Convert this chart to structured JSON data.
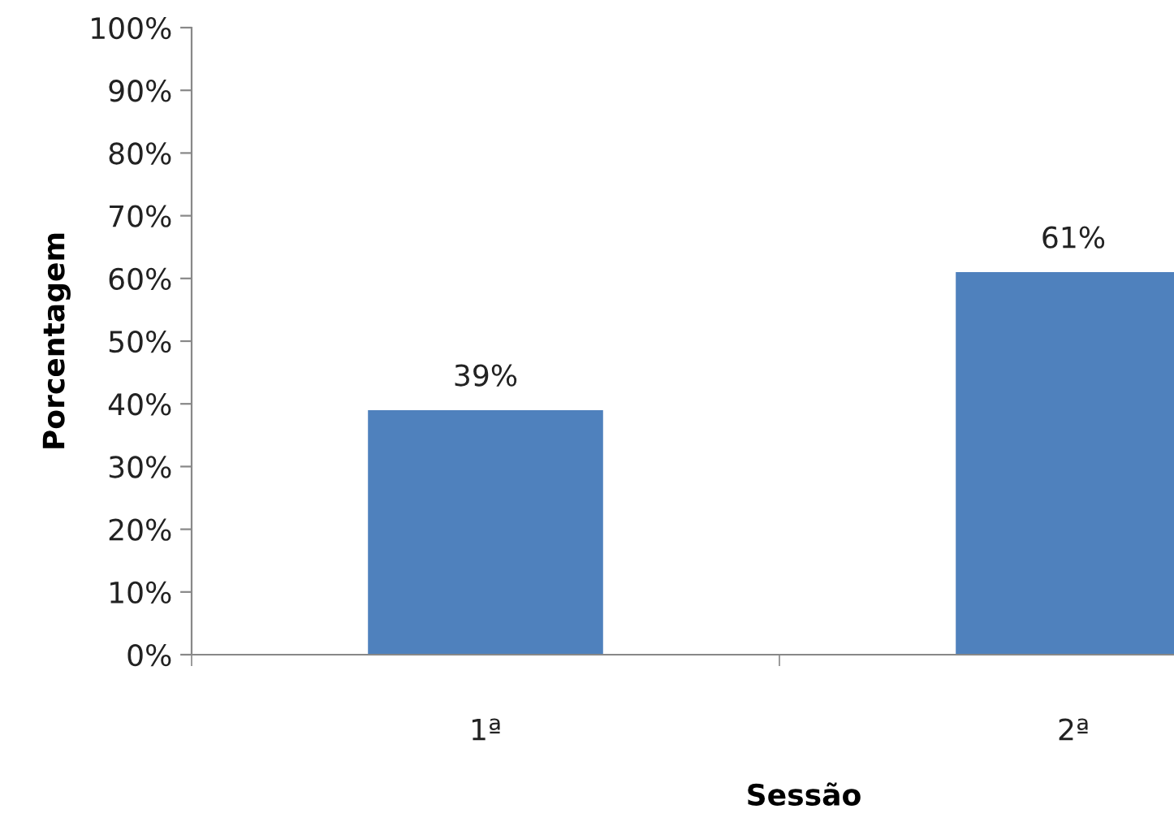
{
  "chart_data": {
    "type": "bar",
    "xlabel": "Sessão",
    "ylabel": "Porcentagem",
    "categories": [
      "1ª",
      "2ª"
    ],
    "values": [
      39,
      61
    ],
    "color": "#4f81bd",
    "value_labels": [
      "39%",
      "61%"
    ],
    "ylim": [
      0,
      100
    ],
    "yticks": [
      {
        "value": 0,
        "label": "0%"
      },
      {
        "value": 10,
        "label": "10%"
      },
      {
        "value": 20,
        "label": "20%"
      },
      {
        "value": 30,
        "label": "30%"
      },
      {
        "value": 40,
        "label": "40%"
      },
      {
        "value": 50,
        "label": "50%"
      },
      {
        "value": 60,
        "label": "60%"
      },
      {
        "value": 70,
        "label": "70%"
      },
      {
        "value": 80,
        "label": "80%"
      },
      {
        "value": 90,
        "label": "90%"
      },
      {
        "value": 100,
        "label": "100%"
      }
    ],
    "grid": false
  }
}
